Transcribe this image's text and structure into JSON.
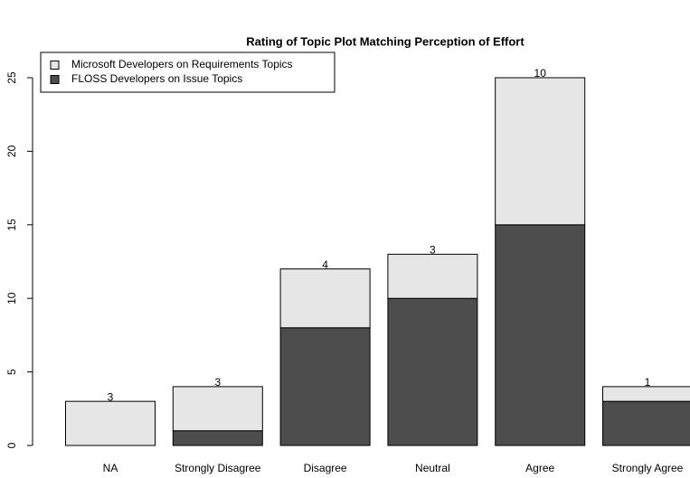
{
  "chart_data": {
    "type": "stacked_bar",
    "title": "Rating of Topic Plot Matching Perception of Effort",
    "categories": [
      "NA",
      "Strongly Disagree",
      "Disagree",
      "Neutral",
      "Agree",
      "Strongly Agree"
    ],
    "series": [
      {
        "name": "FLOSS Developers on Issue Topics",
        "color": "#4d4d4d",
        "values": [
          0,
          1,
          8,
          10,
          15,
          3
        ]
      },
      {
        "name": "Microsoft Developers on Requirements Topics",
        "color": "#e6e6e6",
        "values": [
          3,
          3,
          4,
          3,
          10,
          1
        ]
      }
    ],
    "ylim": [
      0,
      25
    ],
    "yticks": [
      0,
      5,
      10,
      15,
      20,
      25
    ],
    "legend": "top-left"
  }
}
